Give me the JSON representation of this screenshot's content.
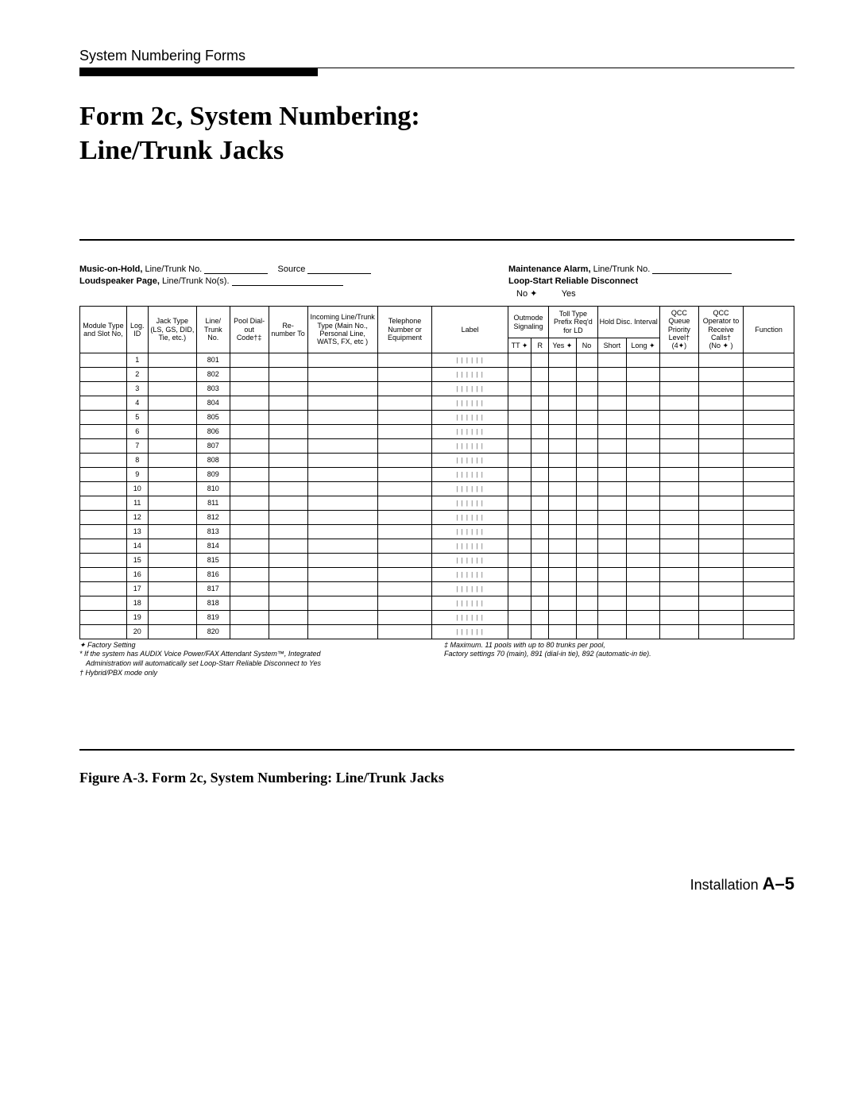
{
  "running_head": "System Numbering Forms",
  "main_title_l1": "Form 2c, System Numbering:",
  "main_title_l2": "Line/Trunk Jacks",
  "meta": {
    "moh_label": "Music-on-Hold,",
    "moh_sub": "Line/Trunk No.",
    "source": "Source",
    "lsp_label": "Loudspeaker Page,",
    "lsp_sub": "Line/Trunk No(s).",
    "maint_label": "Maintenance Alarm,",
    "maint_sub": "Line/Trunk No.",
    "loop_label": "Loop-Start Reliable Disconnect",
    "loop_no": "No ✦",
    "loop_yes": "Yes"
  },
  "columns": {
    "module": "Module Type and Slot No,",
    "log": "Log. ID",
    "jack": "Jack Type (LS, GS, DID, Tie, etc.)",
    "ltno": "Line/ Trunk No.",
    "pool": "Pool Dial- out Code†‡",
    "renum": "Re- number To",
    "incoming": "Incoming Line/Trunk Type (Main No., Personal Line, WATS, FX, etc )",
    "phone": "Telephone Number or Equipment",
    "label": "Label",
    "outmode_top": "Outmode Signaling",
    "outmode_tt": "TT ✦",
    "outmode_r": "R",
    "toll_top": "Toll Type Prefix Req'd for LD",
    "toll_yes": "Yes ✦",
    "toll_no": "No",
    "hold_top": "Hold Disc. Interval",
    "hold_short": "Short",
    "hold_long": "Long ✦",
    "qcc_queue": "QCC Queue Priority Level†",
    "qcc_queue_sub": "(4✦)",
    "qcc_op": "QCC Operator to Receive Calls†",
    "qcc_op_sub": "(No ✦ )",
    "function": "Function"
  },
  "rows": [
    {
      "log": "1",
      "lt": "801"
    },
    {
      "log": "2",
      "lt": "802"
    },
    {
      "log": "3",
      "lt": "803"
    },
    {
      "log": "4",
      "lt": "804"
    },
    {
      "log": "5",
      "lt": "805"
    },
    {
      "log": "6",
      "lt": "806"
    },
    {
      "log": "7",
      "lt": "807"
    },
    {
      "log": "8",
      "lt": "808"
    },
    {
      "log": "9",
      "lt": "809"
    },
    {
      "log": "10",
      "lt": "810"
    },
    {
      "log": "11",
      "lt": "811"
    },
    {
      "log": "12",
      "lt": "812"
    },
    {
      "log": "13",
      "lt": "813"
    },
    {
      "log": "14",
      "lt": "814"
    },
    {
      "log": "15",
      "lt": "815"
    },
    {
      "log": "16",
      "lt": "816"
    },
    {
      "log": "17",
      "lt": "817"
    },
    {
      "log": "18",
      "lt": "818"
    },
    {
      "log": "19",
      "lt": "819"
    },
    {
      "log": "20",
      "lt": "820"
    }
  ],
  "label_pattern": "| | | | | |",
  "footnotes": {
    "factory": "✦ Factory Setting",
    "audix1": "* If the system has AUDIX Voice Power/FAX Attendant System™, Integrated",
    "audix2": "Administration will automatically set Loop-Starr Reliable Disconnect to Yes",
    "hybrid": "† Hybrid/PBX mode only",
    "pools1": "‡ Maximum. 11 pools with up to 80 trunks per pool,",
    "pools2": "Factory settings 70 (main), 891 (dial-in tie), 892 (automatic-in tie)."
  },
  "caption": "Figure A-3. Form 2c, System Numbering: Line/Trunk Jacks",
  "foot_label": "Installation",
  "foot_page": "A–5",
  "colwidths": {
    "module": 48,
    "log": 22,
    "jack": 50,
    "ltno": 34,
    "pool": 40,
    "renum": 40,
    "incoming": 72,
    "phone": 56,
    "label": 78,
    "out1": 24,
    "out2": 18,
    "toll1": 28,
    "toll2": 22,
    "hold1": 30,
    "hold2": 34,
    "qccq": 40,
    "qcco": 46,
    "func": 52
  },
  "colors": {
    "text": "#000000",
    "bg": "#ffffff"
  }
}
